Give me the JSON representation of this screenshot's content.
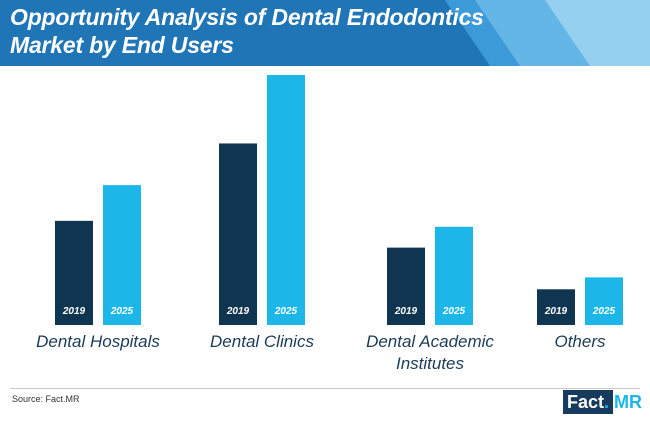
{
  "colors": {
    "header_bg": "#1f75b6",
    "header_accent_1": "#3c9ad8",
    "header_accent_2": "#64b6e6",
    "header_accent_3": "#95d0f1",
    "series_2019": "#0f3550",
    "series_2025": "#1cb6e9",
    "logo_box": "#173b5c",
    "logo_accent": "#1cb6e9"
  },
  "header": {
    "title_line1": "Opportunity Analysis of Dental Endodontics",
    "title_line2": "Market by End Users"
  },
  "chart_data": {
    "type": "bar",
    "title": "Opportunity Analysis of Dental Endodontics Market by End Users",
    "categories": [
      {
        "line1": "Dental Hospitals",
        "line2": ""
      },
      {
        "line1": "Dental Clinics",
        "line2": ""
      },
      {
        "line1": "Dental Academic",
        "line2": "Institutes"
      },
      {
        "line1": "Others",
        "line2": ""
      }
    ],
    "series": [
      {
        "name": "2019",
        "color": "#0f3550",
        "values": [
          35,
          61,
          26,
          12
        ]
      },
      {
        "name": "2025",
        "color": "#1cb6e9",
        "values": [
          47,
          84,
          33,
          16
        ]
      }
    ],
    "ylim": [
      0,
      84
    ],
    "grid": false,
    "legend": "inside bars",
    "value_units": "relative bar height (no axis shown)"
  },
  "footer": {
    "source": "Source: Fact.MR",
    "logo_part1": "Fact",
    "logo_dot": ".",
    "logo_part2": "MR"
  }
}
